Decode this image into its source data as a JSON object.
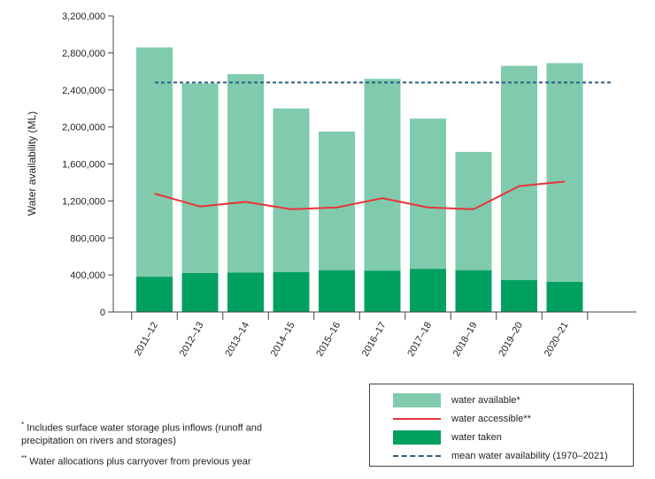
{
  "chart_data": {
    "type": "bar",
    "ylabel": "Water availability (ML)",
    "xlabel": "",
    "ylim": [
      0,
      3200000
    ],
    "yticks": [
      0,
      400000,
      800000,
      1200000,
      1600000,
      2000000,
      2400000,
      2800000,
      3200000
    ],
    "ytick_labels": [
      "0",
      "400,000",
      "800,000",
      "1,200,000",
      "1,600,000",
      "2,000,000",
      "2,400,000",
      "2,800,000",
      "3,200,000"
    ],
    "categories": [
      "2011–12",
      "2012–13",
      "2013–14",
      "2014–15",
      "2015–16",
      "2016–17",
      "2017–18",
      "2018–19",
      "2019–20",
      "2020–21"
    ],
    "series": [
      {
        "name": "water available*",
        "kind": "bar",
        "color": "#80cbad",
        "values": [
          2860000,
          2470000,
          2570000,
          2200000,
          1950000,
          2520000,
          2090000,
          1730000,
          2660000,
          2690000
        ]
      },
      {
        "name": "water taken",
        "kind": "bar",
        "color": "#00a060",
        "values": [
          380000,
          420000,
          425000,
          430000,
          450000,
          445000,
          465000,
          450000,
          345000,
          325000
        ]
      },
      {
        "name": "water accessible**",
        "kind": "line",
        "color": "#e8333a",
        "values": [
          1280000,
          1140000,
          1190000,
          1110000,
          1130000,
          1230000,
          1130000,
          1110000,
          1360000,
          1410000
        ]
      },
      {
        "name": "mean water availability (1970–2021)",
        "kind": "dashed-line",
        "color": "#2a5f80",
        "value": 2480000
      }
    ],
    "legend_placement": "bottom-right",
    "grid": false
  },
  "legend": {
    "items": [
      {
        "label": "water available*",
        "type": "bar",
        "color": "#80cbad"
      },
      {
        "label": "water accessible**",
        "type": "line",
        "color": "#e8333a"
      },
      {
        "label": "water taken",
        "type": "bar",
        "color": "#00a060"
      },
      {
        "label": "mean water availability (1970–2021)",
        "type": "dashed",
        "color": "#2a5f80"
      }
    ]
  },
  "notes": {
    "note1_mark": "*",
    "note1_text": "Includes surface water storage plus inflows (runoff and precipitation on rivers and storages)",
    "note2_mark": "**",
    "note2_text": "Water allocations plus carryover from previous year"
  }
}
